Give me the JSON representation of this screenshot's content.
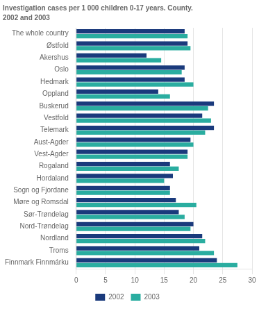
{
  "chart_data": {
    "type": "bar",
    "orientation": "horizontal",
    "title": "Investigation cases per 1 000 children 0-17 years. County.",
    "subtitle": "2002 and 2003",
    "categories": [
      "The whole country",
      "Østfold",
      "Akershus",
      "Oslo",
      "Hedmark",
      "Oppland",
      "Buskerud",
      "Vestfold",
      "Telemark",
      "Aust-Agder",
      "Vest-Agder",
      "Rogaland",
      "Hordaland",
      "Sogn og Fjordane",
      "Møre og Romsdal",
      "Sør-Trøndelag",
      "Nord-Trøndelag",
      "Nordland",
      "Troms",
      "Finnmark Finnmárku"
    ],
    "series": [
      {
        "name": "2002",
        "color": "#1a3a7c",
        "values": [
          18.5,
          19.0,
          12.0,
          18.5,
          18.5,
          14.0,
          23.5,
          21.5,
          23.5,
          19.5,
          19.0,
          16.0,
          16.5,
          16.0,
          17.0,
          17.5,
          20.0,
          21.5,
          21.0,
          24.0
        ]
      },
      {
        "name": "2003",
        "color": "#2aada0",
        "values": [
          19.0,
          19.5,
          14.5,
          18.0,
          20.0,
          16.0,
          22.5,
          23.0,
          22.0,
          20.0,
          19.0,
          17.5,
          15.0,
          16.0,
          20.5,
          18.5,
          19.5,
          22.0,
          23.5,
          27.5
        ]
      }
    ],
    "xlim": [
      0,
      30
    ],
    "xticks": [
      0,
      5,
      10,
      15,
      20,
      25,
      30
    ],
    "grid": true,
    "legend": "bottom"
  }
}
